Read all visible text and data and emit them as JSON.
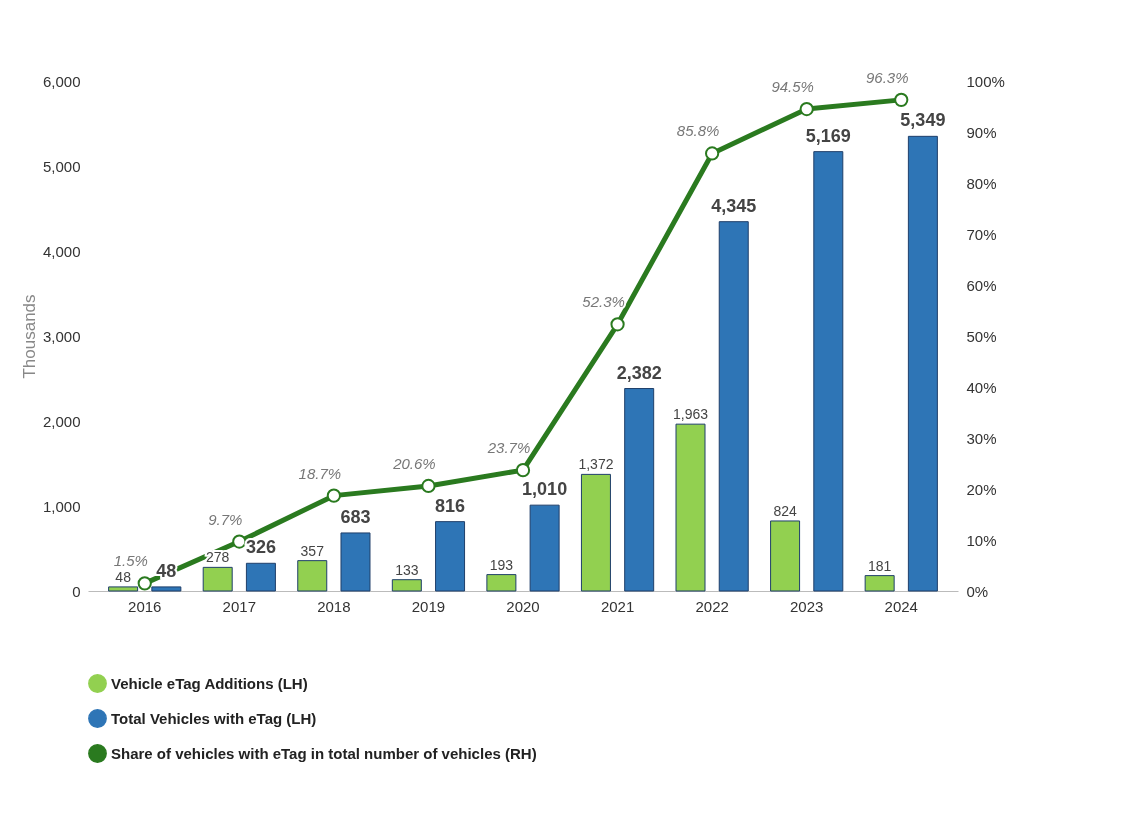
{
  "chart_data": {
    "type": "bar",
    "ylabel": "Thousands",
    "categories": [
      "2016",
      "2017",
      "2018",
      "2019",
      "2020",
      "2021",
      "2022",
      "2023",
      "2024"
    ],
    "ylim": [
      0,
      6000
    ],
    "yticks": [
      0,
      {
        "value": 1000,
        "label": "1,000"
      },
      {
        "value": 2000,
        "label": "2,000"
      },
      {
        "value": 3000,
        "label": "3,000"
      },
      {
        "value": 4000,
        "label": "4,000"
      },
      {
        "value": 5000,
        "label": "5,000"
      },
      {
        "value": 6000,
        "label": "6,000"
      }
    ],
    "y2lim": [
      0,
      100
    ],
    "y2ticks": [
      {
        "value": 0,
        "label": "0%"
      },
      {
        "value": 10,
        "label": "10%"
      },
      {
        "value": 20,
        "label": "20%"
      },
      {
        "value": 30,
        "label": "30%"
      },
      {
        "value": 40,
        "label": "40%"
      },
      {
        "value": 50,
        "label": "50%"
      },
      {
        "value": 60,
        "label": "60%"
      },
      {
        "value": 70,
        "label": "70%"
      },
      {
        "value": 80,
        "label": "80%"
      },
      {
        "value": 90,
        "label": "90%"
      },
      {
        "value": 100,
        "label": "100%"
      }
    ],
    "legend": "bottom",
    "grid": false,
    "series": [
      {
        "name": "Vehicle eTag Additions (LH)",
        "color": "#92d050",
        "values": [
          48,
          278,
          357,
          133,
          193,
          1372,
          1963,
          824,
          181
        ],
        "value_labels": [
          "48",
          "278",
          "357",
          "133",
          "193",
          "1,372",
          "1,963",
          "824",
          "181"
        ]
      },
      {
        "name": "Total Vehicles with eTag (LH)",
        "color": "#2e75b6",
        "values": [
          48,
          326,
          683,
          816,
          1010,
          2382,
          4345,
          5169,
          5349
        ],
        "value_labels": [
          "48",
          "326",
          "683",
          "816",
          "1,010",
          "2,382",
          "4,345",
          "5,169",
          "5,349"
        ]
      },
      {
        "name": "Share of  vehicles with eTag in total number of vehicles (RH)",
        "color": "#2a7a1f",
        "type": "line",
        "axis": "y2",
        "marker": "circle",
        "values": [
          1.5,
          9.7,
          18.7,
          20.6,
          23.7,
          52.3,
          85.8,
          94.5,
          96.3
        ],
        "value_labels": [
          "1.5%",
          "9.7%",
          "18.7%",
          "20.6%",
          "23.7%",
          "52.3%",
          "85.8%",
          "94.5%",
          "96.3%"
        ]
      }
    ]
  }
}
